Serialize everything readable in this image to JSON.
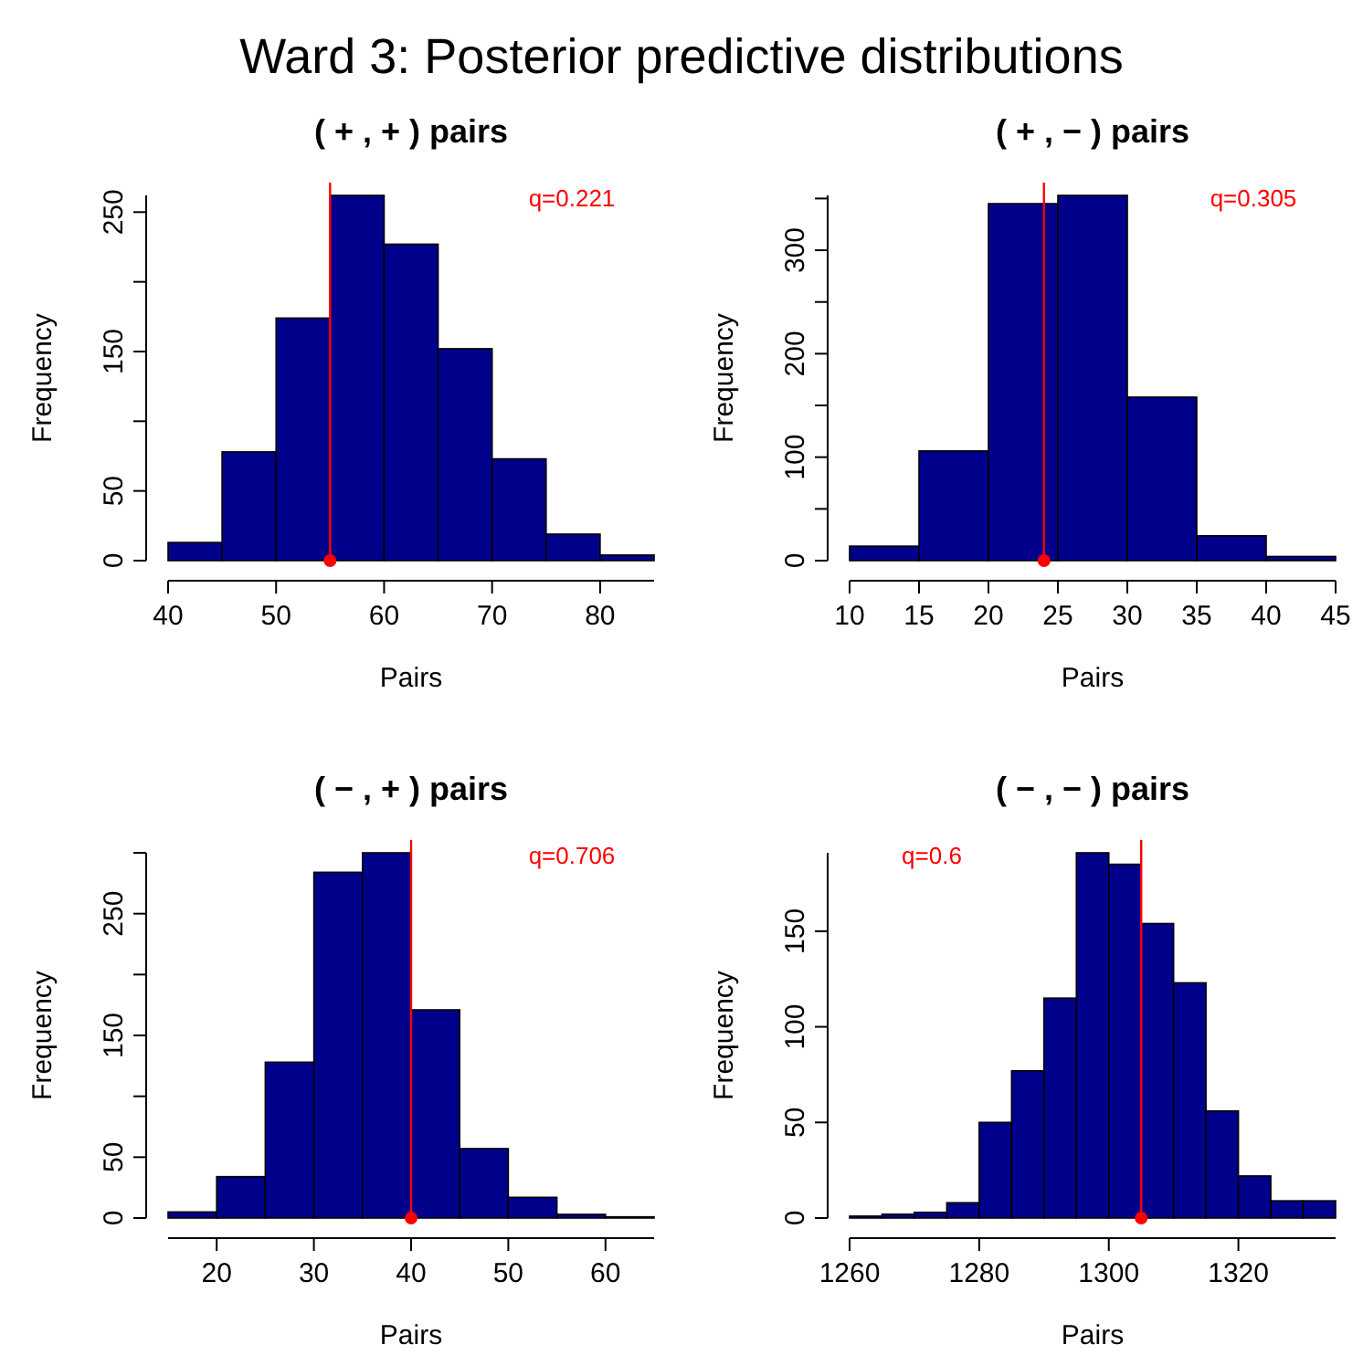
{
  "chart_data": [
    {
      "type": "other",
      "title": "Ward 3: Posterior predictive distributions"
    },
    {
      "type": "histogram",
      "title": "( + , + ) pairs",
      "xlabel": "Pairs",
      "ylabel": "Frequency",
      "color": "#00008b",
      "bins": [
        40,
        45,
        50,
        55,
        60,
        65,
        70,
        75,
        80,
        85
      ],
      "values": [
        13,
        78,
        174,
        262,
        227,
        152,
        73,
        19,
        4
      ],
      "xlim": [
        40,
        85
      ],
      "xticks": [
        40,
        50,
        60,
        70,
        80
      ],
      "ylim": [
        0,
        262
      ],
      "yticks": [
        0,
        50,
        {
          "value": 100,
          "label": null
        },
        150,
        {
          "value": 200,
          "label": null
        },
        250
      ],
      "ref_lines": [
        {
          "axis": "x",
          "value": 55,
          "color": "#ff0000"
        }
      ],
      "series": [
        {
          "type": "scatter",
          "x": [
            55
          ],
          "values": [
            0
          ],
          "color": "#ff0000"
        }
      ],
      "marker": "circle",
      "annotations": [
        "q=0.221"
      ]
    },
    {
      "type": "histogram",
      "title": "( + , − ) pairs",
      "xlabel": "Pairs",
      "ylabel": "Frequency",
      "color": "#00008b",
      "bins": [
        10,
        15,
        20,
        25,
        30,
        35,
        40,
        45
      ],
      "values": [
        14,
        106,
        345,
        353,
        158,
        24,
        4
      ],
      "xlim": [
        10,
        45
      ],
      "xticks": [
        10,
        15,
        20,
        25,
        30,
        35,
        40,
        45
      ],
      "ylim": [
        0,
        353
      ],
      "yticks": [
        0,
        {
          "value": 50,
          "label": null
        },
        100,
        {
          "value": 150,
          "label": null
        },
        200,
        {
          "value": 250,
          "label": null
        },
        300,
        {
          "value": 350,
          "label": null
        }
      ],
      "ref_lines": [
        {
          "axis": "x",
          "value": 24,
          "color": "#ff0000"
        }
      ],
      "series": [
        {
          "type": "scatter",
          "x": [
            24
          ],
          "values": [
            0
          ],
          "color": "#ff0000"
        }
      ],
      "marker": "circle",
      "annotations": [
        "q=0.305"
      ]
    },
    {
      "type": "histogram",
      "title": "( − , + ) pairs",
      "xlabel": "Pairs",
      "ylabel": "Frequency",
      "color": "#00008b",
      "bins": [
        15,
        20,
        25,
        30,
        35,
        40,
        45,
        50,
        55,
        60,
        65
      ],
      "values": [
        5,
        34,
        128,
        284,
        300,
        171,
        57,
        17,
        3,
        1
      ],
      "xlim": [
        15,
        65
      ],
      "xticks": [
        20,
        30,
        40,
        50,
        60
      ],
      "ylim": [
        0,
        300
      ],
      "yticks": [
        0,
        50,
        {
          "value": 100,
          "label": null
        },
        150,
        {
          "value": 200,
          "label": null
        },
        250,
        {
          "value": 300,
          "label": null
        }
      ],
      "ref_lines": [
        {
          "axis": "x",
          "value": 40,
          "color": "#ff0000"
        }
      ],
      "series": [
        {
          "type": "scatter",
          "x": [
            40
          ],
          "values": [
            0
          ],
          "color": "#ff0000"
        }
      ],
      "marker": "circle",
      "annotations": [
        "q=0.706"
      ]
    },
    {
      "type": "histogram",
      "title": "( − , − ) pairs",
      "xlabel": "Pairs",
      "ylabel": "Frequency",
      "color": "#00008b",
      "bins": [
        1260,
        1265,
        1270,
        1275,
        1280,
        1285,
        1290,
        1295,
        1300,
        1305,
        1310,
        1315,
        1320,
        1325,
        1330,
        1335
      ],
      "values": [
        1,
        2,
        3,
        8,
        50,
        77,
        115,
        191,
        185,
        154,
        123,
        56,
        22,
        9,
        9
      ],
      "xlim": [
        1260,
        1335
      ],
      "xticks": [
        1260,
        1280,
        1300,
        1320
      ],
      "ylim": [
        0,
        191
      ],
      "yticks": [
        0,
        50,
        100,
        150
      ],
      "ref_lines": [
        {
          "axis": "x",
          "value": 1305,
          "color": "#ff0000"
        }
      ],
      "series": [
        {
          "type": "scatter",
          "x": [
            1305
          ],
          "values": [
            0
          ],
          "color": "#ff0000"
        }
      ],
      "marker": "circle",
      "annotations": [
        "q=0.6"
      ]
    }
  ]
}
